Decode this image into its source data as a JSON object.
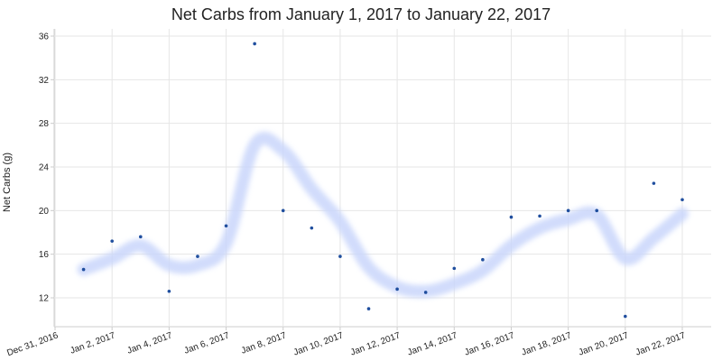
{
  "chart_data": {
    "type": "scatter",
    "title": "Net Carbs from January 1, 2017 to January 22, 2017",
    "ylabel": "Net Carbs (g)",
    "xlabel": "",
    "ylim": [
      10,
      36.5
    ],
    "yticks": [
      12,
      16,
      20,
      24,
      28,
      32,
      36
    ],
    "xlim": [
      "2016-12-31",
      "2017-01-22"
    ],
    "xticks": [
      {
        "date": "2016-12-31",
        "label": "Dec 31, 2016"
      },
      {
        "date": "2017-01-02",
        "label": "Jan 2, 2017"
      },
      {
        "date": "2017-01-04",
        "label": "Jan 4, 2017"
      },
      {
        "date": "2017-01-06",
        "label": "Jan 6, 2017"
      },
      {
        "date": "2017-01-08",
        "label": "Jan 8, 2017"
      },
      {
        "date": "2017-01-10",
        "label": "Jan 10, 2017"
      },
      {
        "date": "2017-01-12",
        "label": "Jan 12, 2017"
      },
      {
        "date": "2017-01-14",
        "label": "Jan 14, 2017"
      },
      {
        "date": "2017-01-16",
        "label": "Jan 16, 2017"
      },
      {
        "date": "2017-01-18",
        "label": "Jan 18, 2017"
      },
      {
        "date": "2017-01-20",
        "label": "Jan 20, 2017"
      },
      {
        "date": "2017-01-22",
        "label": "Jan 22, 2017"
      }
    ],
    "grid": true,
    "series": [
      {
        "type": "scatter",
        "color": "#1f4e9e",
        "points": [
          {
            "x": "2017-01-01",
            "y": 14.6
          },
          {
            "x": "2017-01-02",
            "y": 17.2
          },
          {
            "x": "2017-01-03",
            "y": 17.6
          },
          {
            "x": "2017-01-04",
            "y": 12.6
          },
          {
            "x": "2017-01-05",
            "y": 15.8
          },
          {
            "x": "2017-01-06",
            "y": 18.6
          },
          {
            "x": "2017-01-07",
            "y": 35.3
          },
          {
            "x": "2017-01-08",
            "y": 20.0
          },
          {
            "x": "2017-01-09",
            "y": 18.4
          },
          {
            "x": "2017-01-10",
            "y": 15.8
          },
          {
            "x": "2017-01-11",
            "y": 11.0
          },
          {
            "x": "2017-01-12",
            "y": 12.8
          },
          {
            "x": "2017-01-13",
            "y": 12.5
          },
          {
            "x": "2017-01-14",
            "y": 14.7
          },
          {
            "x": "2017-01-15",
            "y": 15.5
          },
          {
            "x": "2017-01-16",
            "y": 19.4
          },
          {
            "x": "2017-01-17",
            "y": 19.5
          },
          {
            "x": "2017-01-18",
            "y": 20.0
          },
          {
            "x": "2017-01-19",
            "y": 20.0
          },
          {
            "x": "2017-01-20",
            "y": 10.3
          },
          {
            "x": "2017-01-21",
            "y": 22.5
          },
          {
            "x": "2017-01-22",
            "y": 21.0
          }
        ]
      },
      {
        "type": "line",
        "style": "smoothed-band",
        "color": "#c9d6fb",
        "points": [
          {
            "x": "2017-01-01",
            "y": 14.6
          },
          {
            "x": "2017-01-02",
            "y": 15.6
          },
          {
            "x": "2017-01-03",
            "y": 16.8
          },
          {
            "x": "2017-01-04",
            "y": 15.0
          },
          {
            "x": "2017-01-05",
            "y": 15.0
          },
          {
            "x": "2017-01-06",
            "y": 17.0
          },
          {
            "x": "2017-01-07",
            "y": 26.0
          },
          {
            "x": "2017-01-08",
            "y": 25.5
          },
          {
            "x": "2017-01-09",
            "y": 22.0
          },
          {
            "x": "2017-01-10",
            "y": 19.0
          },
          {
            "x": "2017-01-11",
            "y": 14.8
          },
          {
            "x": "2017-01-12",
            "y": 13.0
          },
          {
            "x": "2017-01-13",
            "y": 12.6
          },
          {
            "x": "2017-01-14",
            "y": 13.3
          },
          {
            "x": "2017-01-15",
            "y": 14.5
          },
          {
            "x": "2017-01-16",
            "y": 16.8
          },
          {
            "x": "2017-01-17",
            "y": 18.4
          },
          {
            "x": "2017-01-18",
            "y": 19.2
          },
          {
            "x": "2017-01-19",
            "y": 19.6
          },
          {
            "x": "2017-01-20",
            "y": 15.6
          },
          {
            "x": "2017-01-21",
            "y": 17.5
          },
          {
            "x": "2017-01-22",
            "y": 19.7
          }
        ]
      }
    ]
  }
}
